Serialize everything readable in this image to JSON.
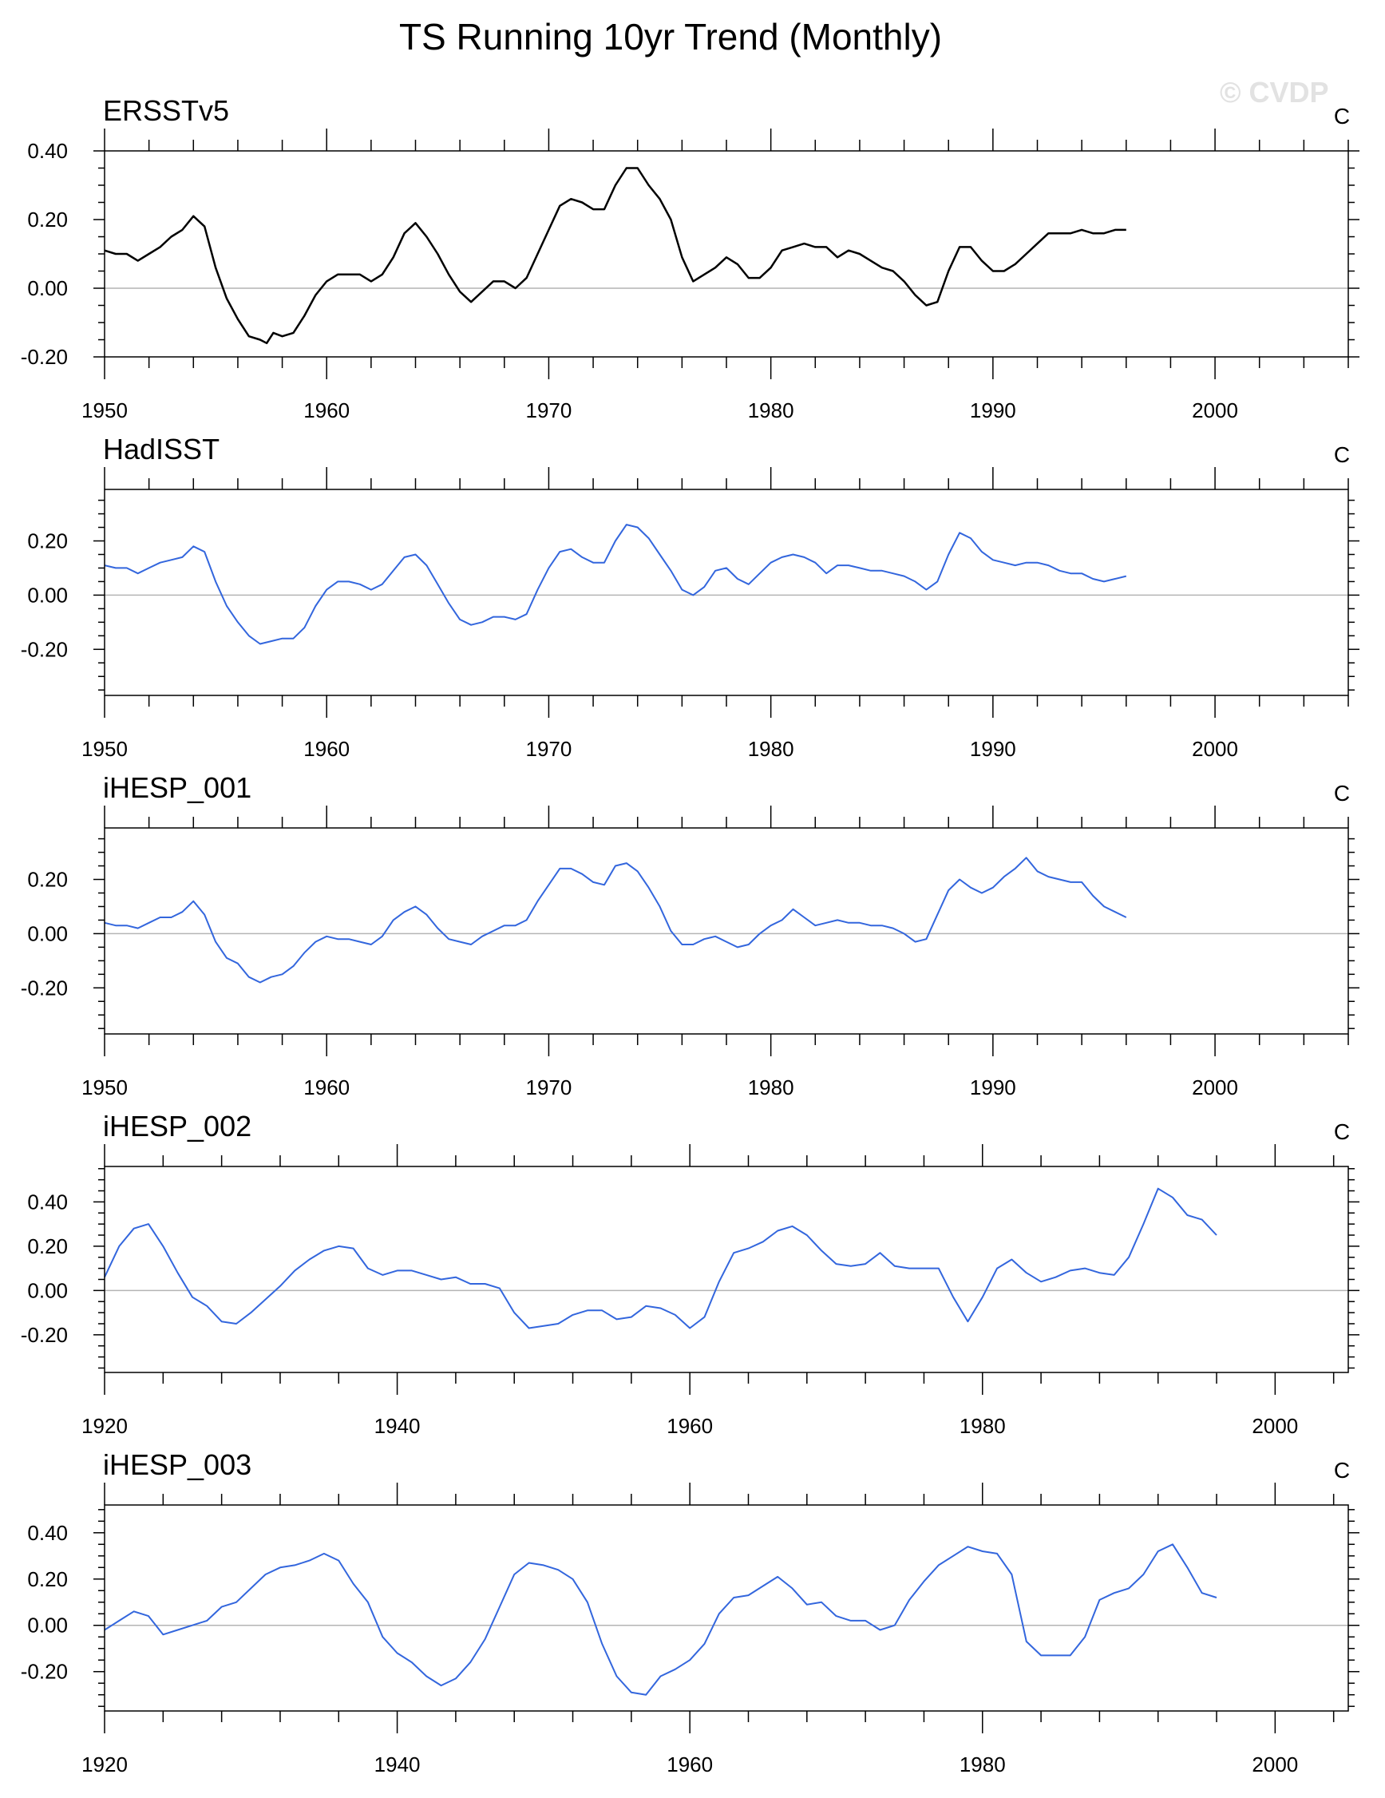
{
  "figure": {
    "title": "TS Running 10yr Trend (Monthly)",
    "watermark": "© CVDP"
  },
  "colors": {
    "obs": "#000000",
    "model": "#3366dd",
    "zero": "#b4b4b4",
    "frame": "#000000"
  },
  "chart_data": [
    {
      "type": "line",
      "title": "ERSSTv5",
      "units": "C",
      "color": "#000000",
      "xlim": [
        1950,
        2006
      ],
      "ylim": [
        -0.2,
        0.4
      ],
      "yticks": [
        -0.2,
        0.0,
        0.2,
        0.4
      ],
      "ytick_labels": [
        "-0.20",
        "0.00",
        "0.20",
        "0.40"
      ],
      "xticks": [
        1950,
        1960,
        1970,
        1980,
        1990,
        2000
      ],
      "xtick_labels": [
        "1950",
        "1960",
        "1970",
        "1980",
        "1990",
        "2000"
      ],
      "x": [
        1950.0,
        1950.5,
        1951.0,
        1951.5,
        1952.0,
        1952.5,
        1953.0,
        1953.5,
        1954.0,
        1954.5,
        1955.0,
        1955.5,
        1956.0,
        1956.5,
        1957.0,
        1957.3,
        1957.6,
        1958.0,
        1958.5,
        1959.0,
        1959.5,
        1960.0,
        1960.5,
        1961.0,
        1961.5,
        1962.0,
        1962.5,
        1963.0,
        1963.5,
        1964.0,
        1964.5,
        1965.0,
        1965.5,
        1966.0,
        1966.5,
        1967.0,
        1967.5,
        1968.0,
        1968.5,
        1969.0,
        1969.5,
        1970.0,
        1970.5,
        1971.0,
        1971.5,
        1972.0,
        1972.5,
        1973.0,
        1973.5,
        1974.0,
        1974.5,
        1975.0,
        1975.5,
        1976.0,
        1976.5,
        1977.0,
        1977.5,
        1978.0,
        1978.5,
        1979.0,
        1979.5,
        1980.0,
        1980.5,
        1981.0,
        1981.5,
        1982.0,
        1982.5,
        1983.0,
        1983.5,
        1984.0,
        1984.5,
        1985.0,
        1985.5,
        1986.0,
        1986.5,
        1987.0,
        1987.5,
        1988.0,
        1988.5,
        1989.0,
        1989.5,
        1990.0,
        1990.5,
        1991.0,
        1991.5,
        1992.0,
        1992.5,
        1993.0,
        1993.5,
        1994.0,
        1994.5,
        1995.0,
        1995.5,
        1996.0
      ],
      "y": [
        0.11,
        0.1,
        0.1,
        0.08,
        0.1,
        0.12,
        0.15,
        0.17,
        0.21,
        0.18,
        0.06,
        -0.03,
        -0.09,
        -0.14,
        -0.15,
        -0.16,
        -0.13,
        -0.14,
        -0.13,
        -0.08,
        -0.02,
        0.02,
        0.04,
        0.04,
        0.04,
        0.02,
        0.04,
        0.09,
        0.16,
        0.19,
        0.15,
        0.1,
        0.04,
        -0.01,
        -0.04,
        -0.01,
        0.02,
        0.02,
        0.0,
        0.03,
        0.1,
        0.17,
        0.24,
        0.26,
        0.25,
        0.23,
        0.23,
        0.3,
        0.35,
        0.35,
        0.3,
        0.26,
        0.2,
        0.09,
        0.02,
        0.04,
        0.06,
        0.09,
        0.07,
        0.03,
        0.03,
        0.06,
        0.11,
        0.12,
        0.13,
        0.12,
        0.12,
        0.09,
        0.11,
        0.1,
        0.08,
        0.06,
        0.05,
        0.02,
        -0.02,
        -0.05,
        -0.04,
        0.05,
        0.12,
        0.12,
        0.08,
        0.05,
        0.05,
        0.07,
        0.1,
        0.13,
        0.16,
        0.16,
        0.16,
        0.17,
        0.16,
        0.16,
        0.17,
        0.17
      ]
    },
    {
      "type": "line",
      "title": "HadISST",
      "units": "C",
      "color": "#3366dd",
      "xlim": [
        1950,
        2006
      ],
      "ylim": [
        -0.37,
        0.39
      ],
      "yticks": [
        -0.2,
        0.0,
        0.2
      ],
      "ytick_labels": [
        "-0.20",
        "0.00",
        "0.20"
      ],
      "xticks": [
        1950,
        1960,
        1970,
        1980,
        1990,
        2000
      ],
      "xtick_labels": [
        "1950",
        "1960",
        "1970",
        "1980",
        "1990",
        "2000"
      ],
      "x": [
        1950.0,
        1950.5,
        1951.0,
        1951.5,
        1952.0,
        1952.5,
        1953.0,
        1953.5,
        1954.0,
        1954.5,
        1955.0,
        1955.5,
        1956.0,
        1956.5,
        1957.0,
        1957.5,
        1958.0,
        1958.5,
        1959.0,
        1959.5,
        1960.0,
        1960.5,
        1961.0,
        1961.5,
        1962.0,
        1962.5,
        1963.0,
        1963.5,
        1964.0,
        1964.5,
        1965.0,
        1965.5,
        1966.0,
        1966.5,
        1967.0,
        1967.5,
        1968.0,
        1968.5,
        1969.0,
        1969.5,
        1970.0,
        1970.5,
        1971.0,
        1971.5,
        1972.0,
        1972.5,
        1973.0,
        1973.5,
        1974.0,
        1974.5,
        1975.0,
        1975.5,
        1976.0,
        1976.5,
        1977.0,
        1977.5,
        1978.0,
        1978.5,
        1979.0,
        1979.5,
        1980.0,
        1980.5,
        1981.0,
        1981.5,
        1982.0,
        1982.5,
        1983.0,
        1983.5,
        1984.0,
        1984.5,
        1985.0,
        1985.5,
        1986.0,
        1986.5,
        1987.0,
        1987.5,
        1988.0,
        1988.5,
        1989.0,
        1989.5,
        1990.0,
        1990.5,
        1991.0,
        1991.5,
        1992.0,
        1992.5,
        1993.0,
        1993.5,
        1994.0,
        1994.5,
        1995.0,
        1995.5,
        1996.0
      ],
      "y": [
        0.11,
        0.1,
        0.1,
        0.08,
        0.1,
        0.12,
        0.13,
        0.14,
        0.18,
        0.16,
        0.05,
        -0.04,
        -0.1,
        -0.15,
        -0.18,
        -0.17,
        -0.16,
        -0.16,
        -0.12,
        -0.04,
        0.02,
        0.05,
        0.05,
        0.04,
        0.02,
        0.04,
        0.09,
        0.14,
        0.15,
        0.11,
        0.04,
        -0.03,
        -0.09,
        -0.11,
        -0.1,
        -0.08,
        -0.08,
        -0.09,
        -0.07,
        0.02,
        0.1,
        0.16,
        0.17,
        0.14,
        0.12,
        0.12,
        0.2,
        0.26,
        0.25,
        0.21,
        0.15,
        0.09,
        0.02,
        0.0,
        0.03,
        0.09,
        0.1,
        0.06,
        0.04,
        0.08,
        0.12,
        0.14,
        0.15,
        0.14,
        0.12,
        0.08,
        0.11,
        0.11,
        0.1,
        0.09,
        0.09,
        0.08,
        0.07,
        0.05,
        0.02,
        0.05,
        0.15,
        0.23,
        0.21,
        0.16,
        0.13,
        0.12,
        0.11,
        0.12,
        0.12,
        0.11,
        0.09,
        0.08,
        0.08,
        0.06,
        0.05,
        0.06,
        0.07
      ]
    },
    {
      "type": "line",
      "title": "iHESP_001",
      "units": "C",
      "color": "#3366dd",
      "xlim": [
        1950,
        2006
      ],
      "ylim": [
        -0.37,
        0.39
      ],
      "yticks": [
        -0.2,
        0.0,
        0.2
      ],
      "ytick_labels": [
        "-0.20",
        "0.00",
        "0.20"
      ],
      "xticks": [
        1950,
        1960,
        1970,
        1980,
        1990,
        2000
      ],
      "xtick_labels": [
        "1950",
        "1960",
        "1970",
        "1980",
        "1990",
        "2000"
      ],
      "x": [
        1950.0,
        1950.5,
        1951.0,
        1951.5,
        1952.0,
        1952.5,
        1953.0,
        1953.5,
        1954.0,
        1954.5,
        1955.0,
        1955.5,
        1956.0,
        1956.5,
        1957.0,
        1957.5,
        1958.0,
        1958.5,
        1959.0,
        1959.5,
        1960.0,
        1960.5,
        1961.0,
        1961.5,
        1962.0,
        1962.5,
        1963.0,
        1963.5,
        1964.0,
        1964.5,
        1965.0,
        1965.5,
        1966.0,
        1966.5,
        1967.0,
        1967.5,
        1968.0,
        1968.5,
        1969.0,
        1969.5,
        1970.0,
        1970.5,
        1971.0,
        1971.5,
        1972.0,
        1972.5,
        1973.0,
        1973.5,
        1974.0,
        1974.5,
        1975.0,
        1975.5,
        1976.0,
        1976.5,
        1977.0,
        1977.5,
        1978.0,
        1978.5,
        1979.0,
        1979.5,
        1980.0,
        1980.5,
        1981.0,
        1981.5,
        1982.0,
        1982.5,
        1983.0,
        1983.5,
        1984.0,
        1984.5,
        1985.0,
        1985.5,
        1986.0,
        1986.5,
        1987.0,
        1987.5,
        1988.0,
        1988.5,
        1989.0,
        1989.5,
        1990.0,
        1990.5,
        1991.0,
        1991.5,
        1992.0,
        1992.5,
        1993.0,
        1993.5,
        1994.0,
        1994.5,
        1995.0,
        1995.5,
        1996.0
      ],
      "y": [
        0.04,
        0.03,
        0.03,
        0.02,
        0.04,
        0.06,
        0.06,
        0.08,
        0.12,
        0.07,
        -0.03,
        -0.09,
        -0.11,
        -0.16,
        -0.18,
        -0.16,
        -0.15,
        -0.12,
        -0.07,
        -0.03,
        -0.01,
        -0.02,
        -0.02,
        -0.03,
        -0.04,
        -0.01,
        0.05,
        0.08,
        0.1,
        0.07,
        0.02,
        -0.02,
        -0.03,
        -0.04,
        -0.01,
        0.01,
        0.03,
        0.03,
        0.05,
        0.12,
        0.18,
        0.24,
        0.24,
        0.22,
        0.19,
        0.18,
        0.25,
        0.26,
        0.23,
        0.17,
        0.1,
        0.01,
        -0.04,
        -0.04,
        -0.02,
        -0.01,
        -0.03,
        -0.05,
        -0.04,
        0.0,
        0.03,
        0.05,
        0.09,
        0.06,
        0.03,
        0.04,
        0.05,
        0.04,
        0.04,
        0.03,
        0.03,
        0.02,
        0.0,
        -0.03,
        -0.02,
        0.07,
        0.16,
        0.2,
        0.17,
        0.15,
        0.17,
        0.21,
        0.24,
        0.28,
        0.23,
        0.21,
        0.2,
        0.19,
        0.19,
        0.14,
        0.1,
        0.08,
        0.06
      ]
    },
    {
      "type": "line",
      "title": "iHESP_002",
      "units": "C",
      "color": "#3366dd",
      "xlim": [
        1920,
        2005
      ],
      "ylim": [
        -0.37,
        0.56
      ],
      "yticks": [
        -0.2,
        0.0,
        0.2,
        0.4
      ],
      "ytick_labels": [
        "-0.20",
        "0.00",
        "0.20",
        "0.40"
      ],
      "xticks": [
        1920,
        1940,
        1960,
        1980,
        2000
      ],
      "xtick_labels": [
        "1920",
        "1940",
        "1960",
        "1980",
        "2000"
      ],
      "x": [
        1920,
        1921,
        1922,
        1923,
        1924,
        1925,
        1926,
        1927,
        1928,
        1929,
        1930,
        1931,
        1932,
        1933,
        1934,
        1935,
        1936,
        1937,
        1938,
        1939,
        1940,
        1941,
        1942,
        1943,
        1944,
        1945,
        1946,
        1947,
        1948,
        1949,
        1950,
        1951,
        1952,
        1953,
        1954,
        1955,
        1956,
        1957,
        1958,
        1959,
        1960,
        1961,
        1962,
        1963,
        1964,
        1965,
        1966,
        1967,
        1968,
        1969,
        1970,
        1971,
        1972,
        1973,
        1974,
        1975,
        1976,
        1977,
        1978,
        1979,
        1980,
        1981,
        1982,
        1983,
        1984,
        1985,
        1986,
        1987,
        1988,
        1989,
        1990,
        1991,
        1992,
        1993,
        1994,
        1995,
        1996
      ],
      "y": [
        0.06,
        0.2,
        0.28,
        0.3,
        0.2,
        0.08,
        -0.03,
        -0.07,
        -0.14,
        -0.15,
        -0.1,
        -0.04,
        0.02,
        0.09,
        0.14,
        0.18,
        0.2,
        0.19,
        0.1,
        0.07,
        0.09,
        0.09,
        0.07,
        0.05,
        0.06,
        0.03,
        0.03,
        0.01,
        -0.1,
        -0.17,
        -0.16,
        -0.15,
        -0.11,
        -0.09,
        -0.09,
        -0.13,
        -0.12,
        -0.07,
        -0.08,
        -0.11,
        -0.17,
        -0.12,
        0.04,
        0.17,
        0.19,
        0.22,
        0.27,
        0.29,
        0.25,
        0.18,
        0.12,
        0.11,
        0.12,
        0.17,
        0.11,
        0.1,
        0.1,
        0.1,
        -0.03,
        -0.14,
        -0.03,
        0.1,
        0.14,
        0.08,
        0.04,
        0.06,
        0.09,
        0.1,
        0.08,
        0.07,
        0.15,
        0.3,
        0.46,
        0.42,
        0.34,
        0.32,
        0.25
      ]
    },
    {
      "type": "line",
      "title": "iHESP_003",
      "units": "C",
      "color": "#3366dd",
      "xlim": [
        1920,
        2005
      ],
      "ylim": [
        -0.37,
        0.52
      ],
      "yticks": [
        -0.2,
        0.0,
        0.2,
        0.4
      ],
      "ytick_labels": [
        "-0.20",
        "0.00",
        "0.20",
        "0.40"
      ],
      "xticks": [
        1920,
        1940,
        1960,
        1980,
        2000
      ],
      "xtick_labels": [
        "1920",
        "1940",
        "1960",
        "1980",
        "2000"
      ],
      "x": [
        1920,
        1921,
        1922,
        1923,
        1924,
        1925,
        1926,
        1927,
        1928,
        1929,
        1930,
        1931,
        1932,
        1933,
        1934,
        1935,
        1936,
        1937,
        1938,
        1939,
        1940,
        1941,
        1942,
        1943,
        1944,
        1945,
        1946,
        1947,
        1948,
        1949,
        1950,
        1951,
        1952,
        1953,
        1954,
        1955,
        1956,
        1957,
        1958,
        1959,
        1960,
        1961,
        1962,
        1963,
        1964,
        1965,
        1966,
        1967,
        1968,
        1969,
        1970,
        1971,
        1972,
        1973,
        1974,
        1975,
        1976,
        1977,
        1978,
        1979,
        1980,
        1981,
        1982,
        1983,
        1984,
        1985,
        1986,
        1987,
        1988,
        1989,
        1990,
        1991,
        1992,
        1993,
        1994,
        1995,
        1996
      ],
      "y": [
        -0.02,
        0.02,
        0.06,
        0.04,
        -0.04,
        -0.02,
        0.0,
        0.02,
        0.08,
        0.1,
        0.16,
        0.22,
        0.25,
        0.26,
        0.28,
        0.31,
        0.28,
        0.18,
        0.1,
        -0.05,
        -0.12,
        -0.16,
        -0.22,
        -0.26,
        -0.23,
        -0.16,
        -0.06,
        0.08,
        0.22,
        0.27,
        0.26,
        0.24,
        0.2,
        0.1,
        -0.08,
        -0.22,
        -0.29,
        -0.3,
        -0.22,
        -0.19,
        -0.15,
        -0.08,
        0.05,
        0.12,
        0.13,
        0.17,
        0.21,
        0.16,
        0.09,
        0.1,
        0.04,
        0.02,
        0.02,
        -0.02,
        0.0,
        0.11,
        0.19,
        0.26,
        0.3,
        0.34,
        0.32,
        0.31,
        0.22,
        -0.07,
        -0.13,
        -0.13,
        -0.13,
        -0.05,
        0.11,
        0.14,
        0.16,
        0.22,
        0.32,
        0.35,
        0.25,
        0.14,
        0.12
      ]
    }
  ]
}
